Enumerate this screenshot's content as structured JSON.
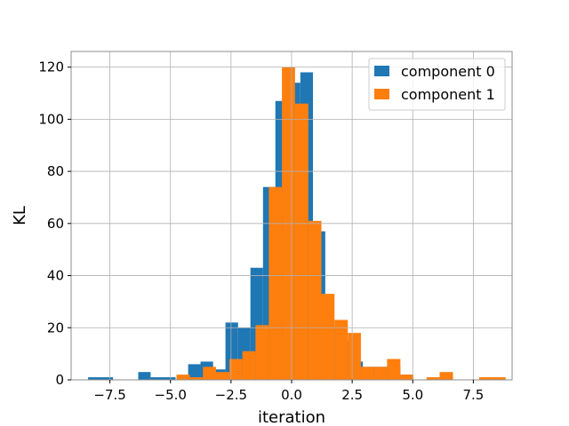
{
  "chart_data": {
    "type": "bar",
    "subtype": "histogram",
    "xlabel": "iteration",
    "ylabel": "KL",
    "xlim": [
      -9.1,
      9.1
    ],
    "ylim": [
      0,
      126
    ],
    "xticks": [
      -7.5,
      -5.0,
      -2.5,
      0.0,
      2.5,
      5.0,
      7.5
    ],
    "xtick_labels": [
      "−7.5",
      "−5.0",
      "−2.5",
      "0.0",
      "2.5",
      "5.0",
      "7.5"
    ],
    "yticks": [
      0,
      20,
      40,
      60,
      80,
      100,
      120
    ],
    "ytick_labels": [
      "0",
      "20",
      "40",
      "60",
      "80",
      "100",
      "120"
    ],
    "grid": true,
    "legend_position": "top-right",
    "series": [
      {
        "name": "component 0",
        "color": "#1f77b4",
        "bins": [
          [
            -8.4,
            -7.37,
            1
          ],
          [
            -6.33,
            -5.82,
            3
          ],
          [
            -5.82,
            -4.79,
            1
          ],
          [
            -4.79,
            -4.27,
            0
          ],
          [
            -4.27,
            -3.76,
            6
          ],
          [
            -3.76,
            -3.24,
            7
          ],
          [
            -3.24,
            -2.73,
            4
          ],
          [
            -2.73,
            -2.21,
            22
          ],
          [
            -2.21,
            -1.7,
            20
          ],
          [
            -1.7,
            -1.18,
            43
          ],
          [
            -1.18,
            -0.67,
            74
          ],
          [
            -0.67,
            -0.15,
            107
          ],
          [
            -0.15,
            0.36,
            114
          ],
          [
            0.36,
            0.88,
            118
          ],
          [
            0.88,
            1.39,
            57
          ],
          [
            1.39,
            1.91,
            20
          ],
          [
            1.91,
            2.42,
            15
          ],
          [
            2.42,
            2.94,
            7
          ],
          [
            2.94,
            4.49,
            5
          ],
          [
            4.49,
            5.0,
            2
          ]
        ]
      },
      {
        "name": "component 1",
        "color": "#ff7f0e",
        "bins": [
          [
            -4.75,
            -4.2,
            2
          ],
          [
            -4.2,
            -3.66,
            1
          ],
          [
            -3.66,
            -3.12,
            5
          ],
          [
            -3.12,
            -2.57,
            3
          ],
          [
            -2.57,
            -2.03,
            8
          ],
          [
            -2.03,
            -1.49,
            11
          ],
          [
            -1.49,
            -0.94,
            21
          ],
          [
            -0.94,
            -0.4,
            74
          ],
          [
            -0.4,
            0.14,
            120
          ],
          [
            0.14,
            0.69,
            106
          ],
          [
            0.69,
            1.23,
            61
          ],
          [
            1.23,
            1.77,
            33
          ],
          [
            1.77,
            2.32,
            23
          ],
          [
            2.32,
            2.86,
            18
          ],
          [
            2.86,
            3.4,
            5
          ],
          [
            3.4,
            3.94,
            5
          ],
          [
            3.94,
            4.49,
            8
          ],
          [
            4.49,
            5.03,
            2
          ],
          [
            5.03,
            5.57,
            0
          ],
          [
            5.57,
            6.11,
            1
          ],
          [
            6.11,
            6.66,
            3
          ],
          [
            6.66,
            7.2,
            0
          ],
          [
            7.2,
            7.74,
            0
          ],
          [
            7.74,
            8.28,
            1
          ],
          [
            8.28,
            8.83,
            1
          ]
        ]
      }
    ]
  }
}
